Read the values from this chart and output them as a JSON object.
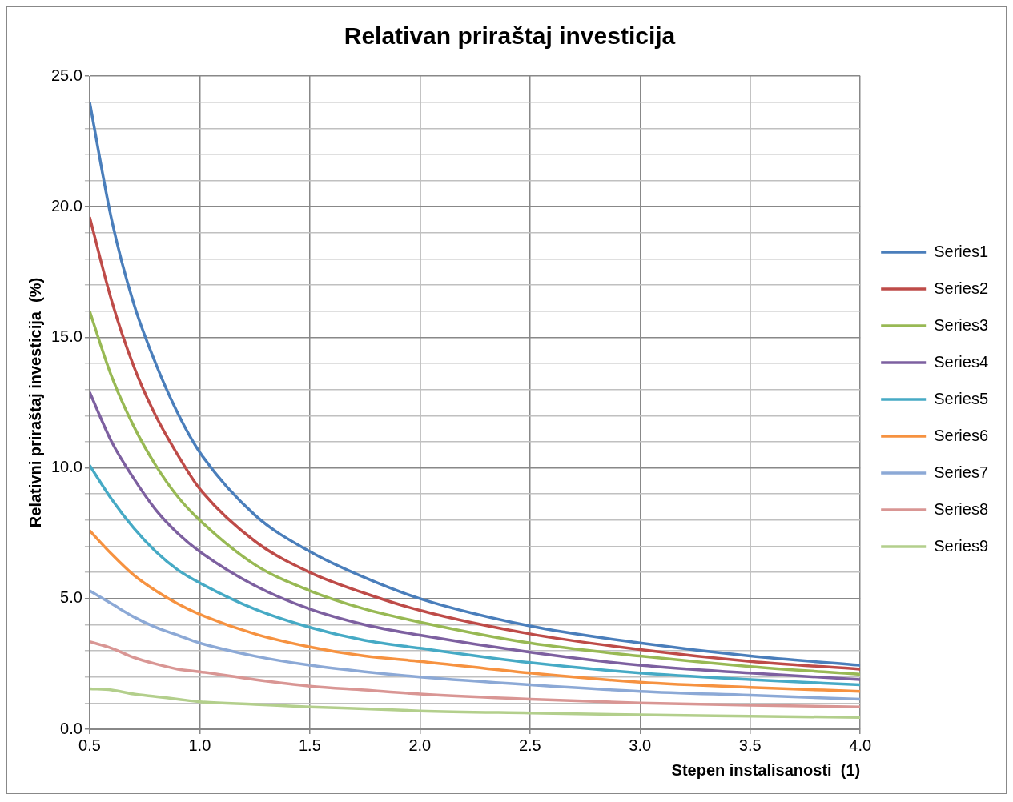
{
  "chart_data": {
    "type": "line",
    "title": "Relativan priraštaj investicija",
    "xlabel": "Stepen instalisanosti  (1)",
    "ylabel": "Relativni priraštaj investicija  (%)",
    "x": [
      0.5,
      0.6,
      0.7,
      0.8,
      0.9,
      1.0,
      1.25,
      1.5,
      1.75,
      2.0,
      2.5,
      3.0,
      3.5,
      4.0
    ],
    "xlim": [
      0.5,
      4.0
    ],
    "xticks": [
      {
        "value": 0.5,
        "label": "0.5"
      },
      {
        "value": 1.0,
        "label": "1.0"
      },
      {
        "value": 1.5,
        "label": "1.5"
      },
      {
        "value": 2.0,
        "label": "2.0"
      },
      {
        "value": 2.5,
        "label": "2.5"
      },
      {
        "value": 3.0,
        "label": "3.0"
      },
      {
        "value": 3.5,
        "label": "3.5"
      },
      {
        "value": 4.0,
        "label": "4.0"
      }
    ],
    "ylim": [
      0,
      25
    ],
    "yticks": [
      {
        "value": 0,
        "label": "0.0"
      },
      {
        "value": 1,
        "label": null
      },
      {
        "value": 2,
        "label": null
      },
      {
        "value": 3,
        "label": null
      },
      {
        "value": 4,
        "label": null
      },
      {
        "value": 5,
        "label": "5.0"
      },
      {
        "value": 6,
        "label": null
      },
      {
        "value": 7,
        "label": null
      },
      {
        "value": 8,
        "label": null
      },
      {
        "value": 9,
        "label": null
      },
      {
        "value": 10,
        "label": "10.0"
      },
      {
        "value": 11,
        "label": null
      },
      {
        "value": 12,
        "label": null
      },
      {
        "value": 13,
        "label": null
      },
      {
        "value": 14,
        "label": null
      },
      {
        "value": 15,
        "label": "15.0"
      },
      {
        "value": 16,
        "label": null
      },
      {
        "value": 17,
        "label": null
      },
      {
        "value": 18,
        "label": null
      },
      {
        "value": 19,
        "label": null
      },
      {
        "value": 20,
        "label": "20.0"
      },
      {
        "value": 21,
        "label": null
      },
      {
        "value": 22,
        "label": null
      },
      {
        "value": 23,
        "label": null
      },
      {
        "value": 24,
        "label": null
      },
      {
        "value": 25,
        "label": "25.0"
      }
    ],
    "grid": true,
    "legend": "right",
    "marker": "none",
    "line_style": "solid",
    "series": [
      {
        "name": "Series1",
        "color": "#4a7ebb",
        "values": [
          24,
          19.5,
          16.3,
          14.0,
          12.1,
          10.6,
          8.2,
          6.8,
          5.8,
          5.0,
          3.95,
          3.3,
          2.8,
          2.45
        ]
      },
      {
        "name": "Series2",
        "color": "#be4b48",
        "values": [
          19.6,
          16.4,
          13.9,
          12.0,
          10.5,
          9.2,
          7.2,
          6.0,
          5.2,
          4.55,
          3.65,
          3.05,
          2.6,
          2.3
        ]
      },
      {
        "name": "Series3",
        "color": "#98b954",
        "values": [
          16.0,
          13.5,
          11.6,
          10.1,
          8.9,
          8.0,
          6.3,
          5.3,
          4.6,
          4.1,
          3.3,
          2.8,
          2.4,
          2.1
        ]
      },
      {
        "name": "Series4",
        "color": "#7d60a0",
        "values": [
          12.9,
          11.0,
          9.6,
          8.4,
          7.5,
          6.8,
          5.5,
          4.6,
          4.0,
          3.6,
          2.95,
          2.45,
          2.15,
          1.9
        ]
      },
      {
        "name": "Series5",
        "color": "#46aac5",
        "values": [
          10.1,
          8.8,
          7.7,
          6.8,
          6.1,
          5.6,
          4.6,
          3.9,
          3.4,
          3.1,
          2.55,
          2.15,
          1.9,
          1.7
        ]
      },
      {
        "name": "Series6",
        "color": "#f69240",
        "values": [
          7.6,
          6.7,
          5.9,
          5.3,
          4.8,
          4.4,
          3.65,
          3.15,
          2.8,
          2.6,
          2.15,
          1.8,
          1.6,
          1.45
        ]
      },
      {
        "name": "Series7",
        "color": "#8ca9d6",
        "values": [
          5.3,
          4.8,
          4.3,
          3.9,
          3.6,
          3.3,
          2.8,
          2.45,
          2.2,
          2.0,
          1.7,
          1.45,
          1.3,
          1.15
        ]
      },
      {
        "name": "Series8",
        "color": "#d99694",
        "values": [
          3.35,
          3.1,
          2.75,
          2.5,
          2.3,
          2.2,
          1.9,
          1.65,
          1.5,
          1.35,
          1.15,
          1.0,
          0.92,
          0.85
        ]
      },
      {
        "name": "Series9",
        "color": "#b3cf8c",
        "values": [
          1.55,
          1.5,
          1.35,
          1.25,
          1.15,
          1.05,
          0.95,
          0.85,
          0.78,
          0.7,
          0.62,
          0.55,
          0.5,
          0.45
        ]
      }
    ]
  }
}
